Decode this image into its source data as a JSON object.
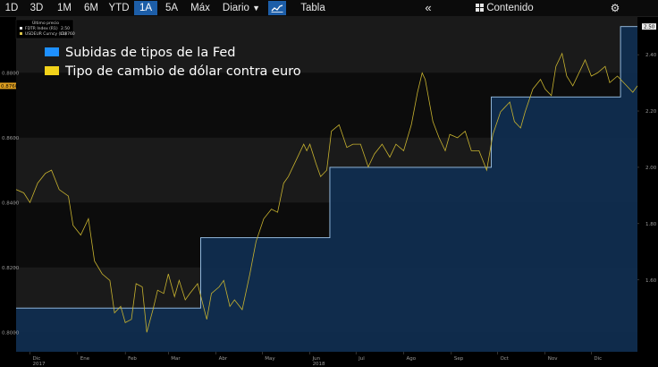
{
  "toolbar": {
    "ranges": [
      "1D",
      "3D",
      "1M",
      "6M",
      "YTD",
      "1A",
      "5A",
      "Máx"
    ],
    "selected_range": "1A",
    "frequency": "Diario",
    "chart_icon": "line-chart-icon",
    "table_label": "Tabla",
    "collapse_icon": "double-chevron-left-icon",
    "contents_icon": "grid-icon",
    "contents_label": "Contenido",
    "settings_icon": "gear-icon"
  },
  "colors": {
    "fed_fill": "#0f2f52",
    "fed_line": "#9fc8ee",
    "fx_line": "#c8b32f",
    "legend_blue": "#1e90ff",
    "legend_yellow": "#f2d21a",
    "accent": "#1d5ea8"
  },
  "chart_data": {
    "type": "line",
    "legend": [
      {
        "label": "Subidas de tipos de la Fed",
        "color": "#1e90ff"
      },
      {
        "label": "Tipo de cambio de dólar contra euro",
        "color": "#f2d21a"
      }
    ],
    "mini_legend": {
      "header": "Último precio",
      "rows": [
        {
          "name": "FDTR Index (R1)",
          "value": "2.50"
        },
        {
          "name": "USDEUR Curncy (L1)",
          "value": "0.8760"
        }
      ]
    },
    "x_ticks": [
      "Dic",
      "Ene",
      "Feb",
      "Mar",
      "Abr",
      "May",
      "Jun",
      "Jul",
      "Ago",
      "Sep",
      "Oct",
      "Nov",
      "Dic"
    ],
    "x_tick_dates": [
      "2017-12-01",
      "2018-01-01",
      "2018-02-01",
      "2018-03-01",
      "2018-04-01",
      "2018-05-01",
      "2018-06-01",
      "2018-07-01",
      "2018-08-01",
      "2018-09-01",
      "2018-10-01",
      "2018-11-01",
      "2018-12-01"
    ],
    "year_labels": [
      {
        "text": "2017",
        "date": "2017-12-01"
      },
      {
        "text": "2018",
        "date": "2018-06-01"
      }
    ],
    "x_range": [
      "2017-11-22",
      "2018-12-31"
    ],
    "left_axis": {
      "ticks": [
        "0.8000",
        "0.8200",
        "0.8400",
        "0.8600",
        "0.8800"
      ],
      "range": [
        0.794,
        0.8975
      ]
    },
    "right_axis": {
      "ticks": [
        "1.60",
        "1.80",
        "2.00",
        "2.20",
        "2.40"
      ],
      "range": [
        1.345,
        2.537
      ]
    },
    "last_value_tags": {
      "left": "0.8760",
      "right": "2.50"
    },
    "series": [
      {
        "name": "FDTR Index",
        "axis": "right",
        "style": "step-area",
        "steps": [
          {
            "date": "2017-11-22",
            "value": 1.5
          },
          {
            "date": "2018-03-22",
            "value": 1.75
          },
          {
            "date": "2018-06-14",
            "value": 2.0
          },
          {
            "date": "2018-09-27",
            "value": 2.25
          },
          {
            "date": "2018-12-20",
            "value": 2.5
          }
        ]
      },
      {
        "name": "USDEUR Curncy",
        "axis": "left",
        "style": "line",
        "points": [
          [
            "2017-11-22",
            0.844
          ],
          [
            "2017-11-27",
            0.843
          ],
          [
            "2017-12-01",
            0.84
          ],
          [
            "2017-12-06",
            0.846
          ],
          [
            "2017-12-11",
            0.849
          ],
          [
            "2017-12-15",
            0.85
          ],
          [
            "2017-12-20",
            0.844
          ],
          [
            "2017-12-26",
            0.842
          ],
          [
            "2017-12-29",
            0.833
          ],
          [
            "2018-01-03",
            0.83
          ],
          [
            "2018-01-08",
            0.835
          ],
          [
            "2018-01-12",
            0.822
          ],
          [
            "2018-01-17",
            0.818
          ],
          [
            "2018-01-22",
            0.816
          ],
          [
            "2018-01-25",
            0.806
          ],
          [
            "2018-01-29",
            0.808
          ],
          [
            "2018-02-01",
            0.803
          ],
          [
            "2018-02-05",
            0.804
          ],
          [
            "2018-02-08",
            0.815
          ],
          [
            "2018-02-12",
            0.814
          ],
          [
            "2018-02-15",
            0.8
          ],
          [
            "2018-02-19",
            0.807
          ],
          [
            "2018-02-22",
            0.813
          ],
          [
            "2018-02-26",
            0.812
          ],
          [
            "2018-03-01",
            0.818
          ],
          [
            "2018-03-05",
            0.811
          ],
          [
            "2018-03-08",
            0.816
          ],
          [
            "2018-03-12",
            0.81
          ],
          [
            "2018-03-15",
            0.812
          ],
          [
            "2018-03-20",
            0.815
          ],
          [
            "2018-03-26",
            0.804
          ],
          [
            "2018-03-29",
            0.812
          ],
          [
            "2018-04-03",
            0.814
          ],
          [
            "2018-04-06",
            0.816
          ],
          [
            "2018-04-10",
            0.808
          ],
          [
            "2018-04-13",
            0.81
          ],
          [
            "2018-04-18",
            0.807
          ],
          [
            "2018-04-23",
            0.818
          ],
          [
            "2018-04-27",
            0.828
          ],
          [
            "2018-05-02",
            0.835
          ],
          [
            "2018-05-07",
            0.838
          ],
          [
            "2018-05-11",
            0.837
          ],
          [
            "2018-05-15",
            0.846
          ],
          [
            "2018-05-18",
            0.848
          ],
          [
            "2018-05-23",
            0.853
          ],
          [
            "2018-05-28",
            0.858
          ],
          [
            "2018-05-30",
            0.856
          ],
          [
            "2018-06-01",
            0.858
          ],
          [
            "2018-06-05",
            0.852
          ],
          [
            "2018-06-08",
            0.848
          ],
          [
            "2018-06-12",
            0.85
          ],
          [
            "2018-06-15",
            0.862
          ],
          [
            "2018-06-20",
            0.864
          ],
          [
            "2018-06-25",
            0.857
          ],
          [
            "2018-06-29",
            0.858
          ],
          [
            "2018-07-04",
            0.858
          ],
          [
            "2018-07-09",
            0.851
          ],
          [
            "2018-07-13",
            0.855
          ],
          [
            "2018-07-18",
            0.858
          ],
          [
            "2018-07-23",
            0.854
          ],
          [
            "2018-07-27",
            0.858
          ],
          [
            "2018-08-01",
            0.856
          ],
          [
            "2018-08-06",
            0.864
          ],
          [
            "2018-08-10",
            0.874
          ],
          [
            "2018-08-13",
            0.88
          ],
          [
            "2018-08-15",
            0.878
          ],
          [
            "2018-08-20",
            0.865
          ],
          [
            "2018-08-24",
            0.86
          ],
          [
            "2018-08-28",
            0.856
          ],
          [
            "2018-08-31",
            0.861
          ],
          [
            "2018-09-05",
            0.86
          ],
          [
            "2018-09-10",
            0.862
          ],
          [
            "2018-09-14",
            0.856
          ],
          [
            "2018-09-19",
            0.856
          ],
          [
            "2018-09-24",
            0.85
          ],
          [
            "2018-09-28",
            0.861
          ],
          [
            "2018-10-03",
            0.868
          ],
          [
            "2018-10-05",
            0.869
          ],
          [
            "2018-10-09",
            0.871
          ],
          [
            "2018-10-12",
            0.865
          ],
          [
            "2018-10-16",
            0.863
          ],
          [
            "2018-10-19",
            0.868
          ],
          [
            "2018-10-24",
            0.875
          ],
          [
            "2018-10-29",
            0.878
          ],
          [
            "2018-11-01",
            0.875
          ],
          [
            "2018-11-05",
            0.873
          ],
          [
            "2018-11-08",
            0.882
          ],
          [
            "2018-11-12",
            0.886
          ],
          [
            "2018-11-15",
            0.879
          ],
          [
            "2018-11-19",
            0.876
          ],
          [
            "2018-11-23",
            0.88
          ],
          [
            "2018-11-27",
            0.884
          ],
          [
            "2018-12-01",
            0.879
          ],
          [
            "2018-12-05",
            0.88
          ],
          [
            "2018-12-10",
            0.882
          ],
          [
            "2018-12-13",
            0.877
          ],
          [
            "2018-12-18",
            0.879
          ],
          [
            "2018-12-24",
            0.876
          ],
          [
            "2018-12-28",
            0.874
          ],
          [
            "2018-12-31",
            0.876
          ]
        ]
      }
    ]
  }
}
